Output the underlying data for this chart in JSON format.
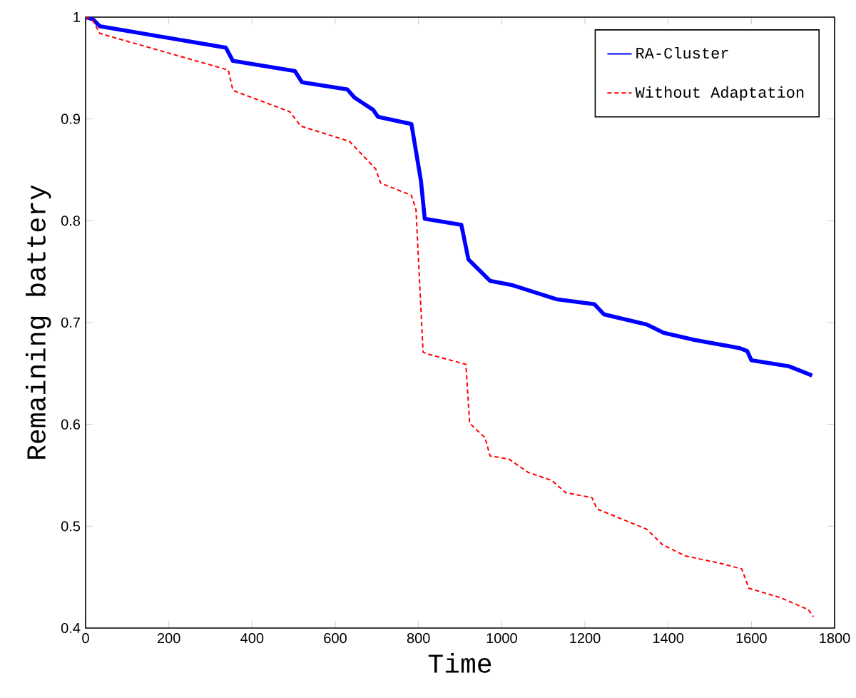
{
  "chart_data": {
    "type": "line",
    "xlabel": "Time",
    "ylabel": "Remaining battery",
    "xlim": [
      0,
      1800
    ],
    "xticks": [
      0,
      200,
      400,
      600,
      800,
      1000,
      1200,
      1400,
      1600,
      1800
    ],
    "ylim": [
      0.4,
      1
    ],
    "yticks": [
      0.4,
      0.5,
      0.6,
      0.7,
      0.8,
      0.9,
      1
    ],
    "legend": "top right",
    "grid": false,
    "marker": "none",
    "series": [
      {
        "name": "RA-Cluster",
        "color": "#0000ff",
        "line_style": "solid",
        "x": [
          0,
          17,
          34,
          337,
          354,
          503,
          520,
          629,
          646,
          691,
          703,
          783,
          806,
          815,
          903,
          920,
          972,
          1023,
          1131,
          1223,
          1246,
          1349,
          1389,
          1463,
          1571,
          1590,
          1600,
          1691,
          1746
        ],
        "values": [
          1.0,
          0.998,
          0.991,
          0.97,
          0.957,
          0.947,
          0.936,
          0.929,
          0.921,
          0.909,
          0.902,
          0.895,
          0.839,
          0.802,
          0.796,
          0.762,
          0.741,
          0.737,
          0.723,
          0.718,
          0.708,
          0.698,
          0.69,
          0.683,
          0.675,
          0.672,
          0.663,
          0.657,
          0.648
        ]
      },
      {
        "name": "Without Adaptation",
        "color": "#ff0000",
        "line_style": "dashed",
        "x": [
          0,
          17,
          34,
          343,
          354,
          491,
          517,
          634,
          697,
          709,
          783,
          794,
          811,
          823,
          914,
          923,
          960,
          972,
          1017,
          1063,
          1120,
          1154,
          1217,
          1229,
          1349,
          1386,
          1440,
          1531,
          1577,
          1594,
          1669,
          1737,
          1749
        ],
        "values": [
          1.0,
          0.997,
          0.984,
          0.948,
          0.928,
          0.907,
          0.893,
          0.878,
          0.851,
          0.837,
          0.825,
          0.811,
          0.671,
          0.669,
          0.659,
          0.601,
          0.587,
          0.569,
          0.566,
          0.553,
          0.545,
          0.533,
          0.528,
          0.517,
          0.497,
          0.482,
          0.471,
          0.463,
          0.458,
          0.439,
          0.43,
          0.418,
          0.411
        ]
      }
    ]
  }
}
